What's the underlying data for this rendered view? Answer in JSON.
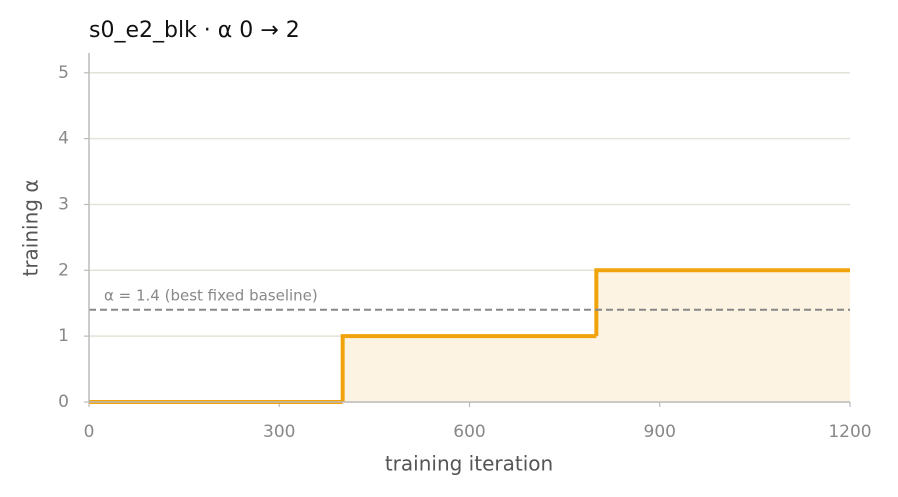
{
  "chart_data": {
    "type": "step",
    "step": "post",
    "title": "s0_e2_blk   ·   α 0 → 2",
    "x_label": "training iteration",
    "y_label": "training α",
    "x": [
      0,
      400,
      800
    ],
    "values": [
      0,
      1,
      2
    ],
    "color": "#f0a30a",
    "fill_color": "#fdf3e3",
    "xlim": [
      0,
      1200
    ],
    "ylim": [
      0,
      5.3
    ],
    "xticks": [
      0,
      300,
      600,
      900,
      1200
    ],
    "yticks": [
      0,
      1,
      2,
      3,
      4,
      5
    ],
    "grid": true,
    "reference_line": {
      "value": 1.4,
      "label": "α = 1.4 (best fixed baseline)",
      "color": "#888888"
    }
  }
}
